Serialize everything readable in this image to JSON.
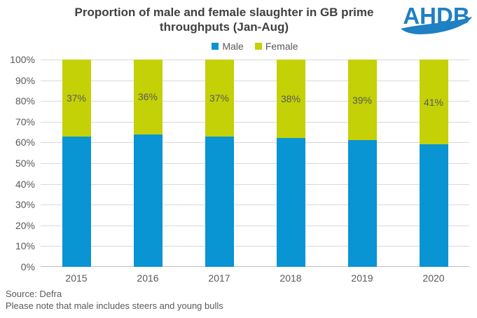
{
  "header": {
    "title_line1": "Proportion of male and female slaughter in GB prime",
    "title_line2": "throughputs (Jan-Aug)",
    "logo_text": "AHDB"
  },
  "chart_data": {
    "type": "bar",
    "stacked": true,
    "title": "Proportion of male and female slaughter in GB prime throughputs (Jan-Aug)",
    "categories": [
      "2015",
      "2016",
      "2017",
      "2018",
      "2019",
      "2020"
    ],
    "series": [
      {
        "name": "Male",
        "color": "#0994d4",
        "values": [
          63,
          64,
          63,
          62,
          61,
          59
        ]
      },
      {
        "name": "Female",
        "color": "#c3d106",
        "values": [
          37,
          36,
          37,
          38,
          39,
          41
        ]
      }
    ],
    "data_labels": {
      "series": "Female",
      "labels": [
        "37%",
        "36%",
        "37%",
        "38%",
        "39%",
        "41%"
      ]
    },
    "y_ticks": [
      "100%",
      "90%",
      "80%",
      "70%",
      "60%",
      "50%",
      "40%",
      "30%",
      "20%",
      "10%",
      "0%"
    ],
    "ylim": [
      0,
      100
    ],
    "grid": true,
    "legend_position": "top"
  },
  "footer": {
    "source": "Source: Defra",
    "note": "Please note that male includes steers and young bulls"
  },
  "colors": {
    "logo_blue": "#1f80c4",
    "title_text": "#404040",
    "axis_text": "#595959",
    "gridline": "#d9d9d9",
    "axis_line": "#bfbfbf",
    "background": "#ffffff"
  }
}
